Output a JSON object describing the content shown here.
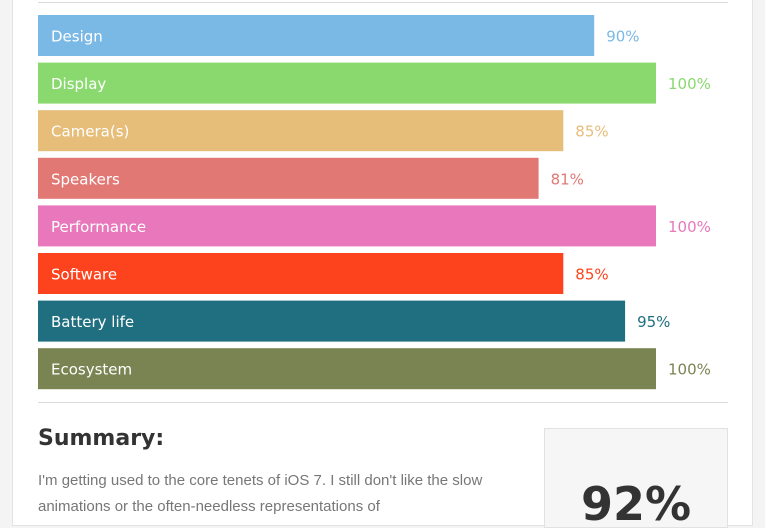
{
  "chart_data": {
    "type": "bar",
    "orientation": "horizontal",
    "categories": [
      "Design",
      "Display",
      "Camera(s)",
      "Speakers",
      "Performance",
      "Software",
      "Battery life",
      "Ecosystem"
    ],
    "values": [
      90,
      100,
      85,
      81,
      100,
      85,
      95,
      100
    ],
    "value_labels": [
      "90%",
      "100%",
      "85%",
      "81%",
      "100%",
      "85%",
      "95%",
      "100%"
    ],
    "colors": [
      "#7ab8e6",
      "#89d96f",
      "#e6bd79",
      "#e27874",
      "#e878bb",
      "#fd431d",
      "#206f80",
      "#7a8452"
    ],
    "xlim": [
      0,
      100
    ],
    "unit": "%",
    "grid": false,
    "legend": "none"
  },
  "summary": {
    "title": "Summary:",
    "text": "I'm getting used to the core tenets of iOS 7. I still don't like the slow animations or the often-needless representations of",
    "score": "92%"
  }
}
